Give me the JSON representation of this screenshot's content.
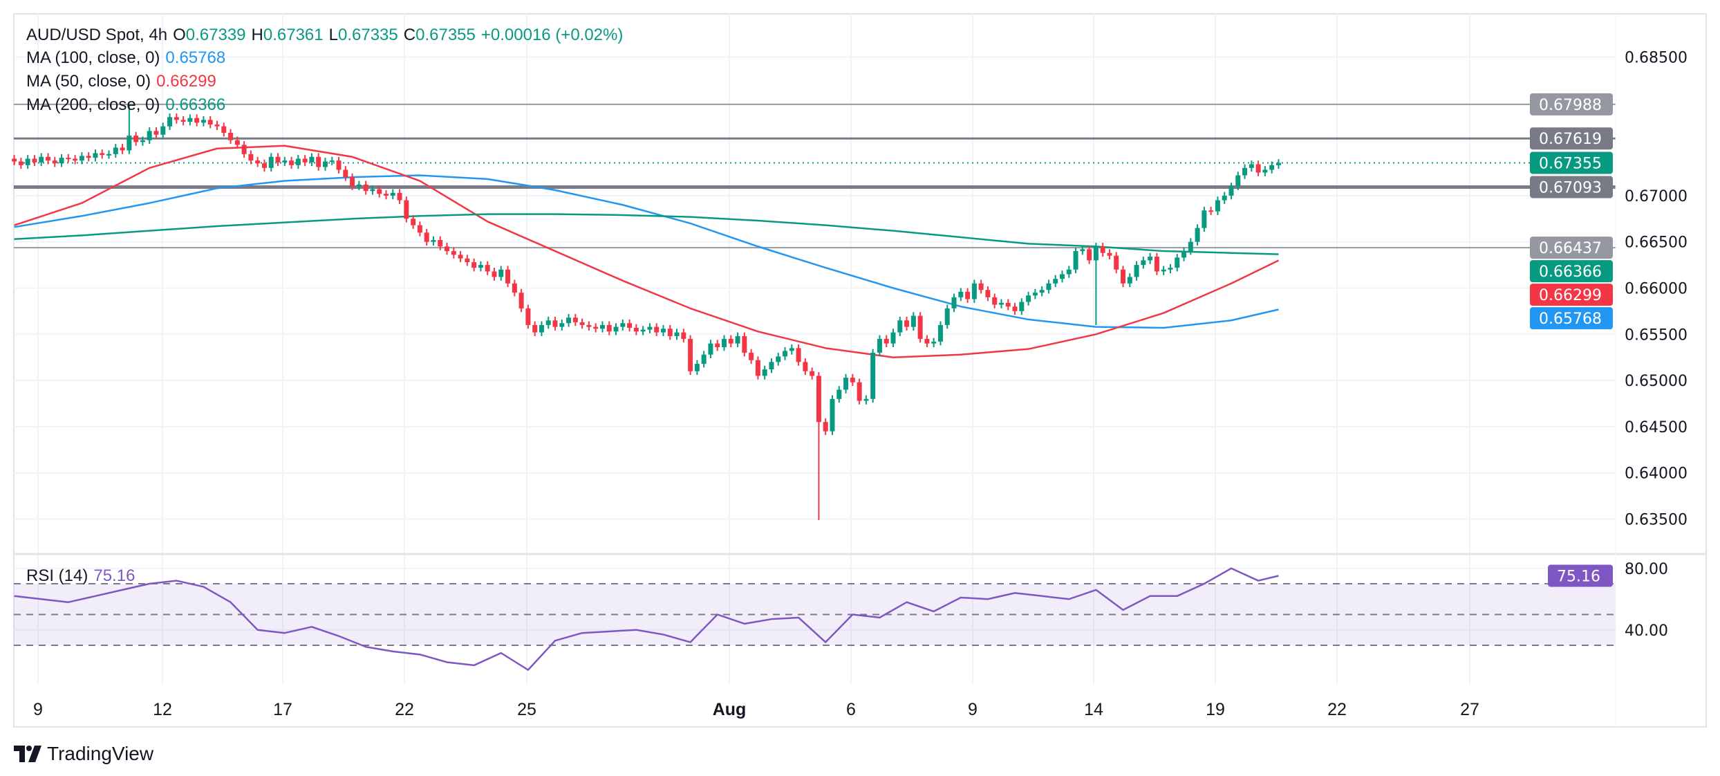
{
  "legend": {
    "symbol": "AUD/USD Spot, 4h",
    "o_label": "O",
    "o_value": "0.67339",
    "h_label": "H",
    "h_value": "0.67361",
    "l_label": "L",
    "l_value": "0.67335",
    "c_label": "C",
    "c_value": "0.67355",
    "change": "+0.00016 (+0.02%)",
    "ma100_label": "MA (100, close, 0)",
    "ma100_value": "0.65768",
    "ma50_label": "MA (50, close, 0)",
    "ma50_value": "0.66299",
    "ma200_label": "MA (200, close, 0)",
    "ma200_value": "0.66366"
  },
  "rsi_legend": {
    "label": "RSI (14)",
    "value": "75.16"
  },
  "price_axis": {
    "ticks": [
      "0.68500",
      "0.67000",
      "0.66500",
      "0.66000",
      "0.65500",
      "0.65000",
      "0.64500",
      "0.64000",
      "0.63500"
    ],
    "tags": [
      {
        "text": "0.67988",
        "value": 0.67988,
        "color": "#9598A1"
      },
      {
        "text": "0.67619",
        "value": 0.67619,
        "color": "#787B86"
      },
      {
        "text": "0.67355",
        "value": 0.67355,
        "color": "#089981"
      },
      {
        "text": "0.67093",
        "value": 0.67093,
        "color": "#787B86"
      },
      {
        "text": "0.66437",
        "value": 0.66437,
        "color": "#9598A1"
      },
      {
        "text": "0.66366",
        "value": 0.66366,
        "color": "#089981"
      },
      {
        "text": "0.66299",
        "value": 0.66299,
        "color": "#F23645"
      },
      {
        "text": "0.65768",
        "value": 0.65768,
        "color": "#2196F3"
      }
    ]
  },
  "rsi_axis": {
    "ticks": [
      "80.00",
      "40.00"
    ],
    "tag": "75.16",
    "tag_color": "#7E57C2"
  },
  "time_axis": {
    "labels": [
      "9",
      "12",
      "17",
      "22",
      "25",
      "Aug",
      "6",
      "9",
      "14",
      "19",
      "22",
      "27"
    ]
  },
  "branding": {
    "name": "TradingView"
  },
  "colors": {
    "up": "#089981",
    "down": "#F23645",
    "ma50": "#F23645",
    "ma100": "#2196F3",
    "ma200": "#089981",
    "rsi": "#7E57C2",
    "level_line": "#787B86"
  },
  "chart_data": {
    "type": "candlestick",
    "timeframe": "4h",
    "ylim": [
      0.632,
      0.687
    ],
    "horizontal_levels": [
      0.67988,
      0.67619,
      0.67093,
      0.66437
    ],
    "last_price": 0.67355,
    "first_open": 0.674,
    "close": [
      0.6737,
      0.6733,
      0.674,
      0.6736,
      0.6742,
      0.6738,
      0.6735,
      0.6741,
      0.674,
      0.6738,
      0.6743,
      0.6741,
      0.6746,
      0.6744,
      0.6745,
      0.6752,
      0.6749,
      0.6765,
      0.6758,
      0.676,
      0.677,
      0.6766,
      0.6775,
      0.6785,
      0.6782,
      0.678,
      0.6784,
      0.6779,
      0.6782,
      0.6777,
      0.6775,
      0.6768,
      0.676,
      0.6755,
      0.6745,
      0.6738,
      0.6735,
      0.673,
      0.6742,
      0.6736,
      0.6738,
      0.6733,
      0.674,
      0.6736,
      0.6742,
      0.6731,
      0.6737,
      0.6738,
      0.6728,
      0.672,
      0.671,
      0.6712,
      0.6705,
      0.6707,
      0.6702,
      0.67,
      0.6703,
      0.6695,
      0.6675,
      0.6668,
      0.666,
      0.665,
      0.6652,
      0.6645,
      0.664,
      0.6636,
      0.6632,
      0.6628,
      0.6622,
      0.6625,
      0.6618,
      0.6612,
      0.662,
      0.6605,
      0.6595,
      0.6578,
      0.656,
      0.6552,
      0.656,
      0.6565,
      0.6558,
      0.6562,
      0.6568,
      0.6563,
      0.656,
      0.6558,
      0.6556,
      0.656,
      0.6553,
      0.6558,
      0.6562,
      0.6557,
      0.6553,
      0.6555,
      0.6558,
      0.6552,
      0.6556,
      0.6548,
      0.6552,
      0.6545,
      0.651,
      0.6518,
      0.6528,
      0.654,
      0.6536,
      0.6545,
      0.654,
      0.6548,
      0.653,
      0.6522,
      0.6505,
      0.6512,
      0.652,
      0.6526,
      0.6532,
      0.6535,
      0.652,
      0.651,
      0.6505,
      0.6455,
      0.6445,
      0.648,
      0.649,
      0.6503,
      0.6498,
      0.6478,
      0.648,
      0.653,
      0.6545,
      0.654,
      0.6552,
      0.6565,
      0.6558,
      0.657,
      0.6545,
      0.654,
      0.6542,
      0.656,
      0.6578,
      0.659,
      0.6596,
      0.6588,
      0.6605,
      0.6598,
      0.659,
      0.6582,
      0.6584,
      0.658,
      0.6575,
      0.6585,
      0.6592,
      0.6595,
      0.6598,
      0.6605,
      0.661,
      0.6615,
      0.662,
      0.664,
      0.6642,
      0.663,
      0.6645,
      0.6638,
      0.6635,
      0.662,
      0.6605,
      0.6612,
      0.6625,
      0.663,
      0.6634,
      0.6618,
      0.662,
      0.6622,
      0.6633,
      0.664,
      0.665,
      0.6665,
      0.6684,
      0.6683,
      0.6695,
      0.67,
      0.671,
      0.6722,
      0.673,
      0.6734,
      0.6725,
      0.6728,
      0.6733,
      0.67355
    ],
    "wick_extremes": [
      {
        "bar": 17,
        "high": 0.6799
      },
      {
        "bar": 119,
        "low": 0.6349
      },
      {
        "bar": 160,
        "low": 0.656
      }
    ],
    "moving_averages": [
      {
        "name": "MA (100, close, 0)",
        "color": "#2196F3",
        "values": [
          0.6666,
          0.6678,
          0.6692,
          0.6708,
          0.6716,
          0.672,
          0.6722,
          0.6718,
          0.6706,
          0.669,
          0.667,
          0.6645,
          0.6622,
          0.66,
          0.658,
          0.6566,
          0.6558,
          0.6557,
          0.6565,
          0.65768
        ]
      },
      {
        "name": "MA (50, close, 0)",
        "color": "#F23645",
        "values": [
          0.6668,
          0.6692,
          0.673,
          0.6751,
          0.6754,
          0.6742,
          0.6716,
          0.6672,
          0.664,
          0.6608,
          0.6578,
          0.6553,
          0.6535,
          0.6525,
          0.6528,
          0.6534,
          0.655,
          0.6573,
          0.6605,
          0.66299
        ]
      },
      {
        "name": "MA (200, close, 0)",
        "color": "#089981",
        "values": [
          0.6653,
          0.6657,
          0.6662,
          0.6667,
          0.6671,
          0.6675,
          0.6678,
          0.668,
          0.668,
          0.6679,
          0.6677,
          0.6673,
          0.6668,
          0.6662,
          0.6655,
          0.6648,
          0.6645,
          0.664,
          0.6638,
          0.66366
        ]
      }
    ],
    "rsi": {
      "name": "RSI (14)",
      "bands": [
        70,
        50,
        30
      ],
      "ylim": [
        0,
        100
      ],
      "values": [
        62,
        60,
        58,
        62,
        66,
        70,
        72,
        68,
        58,
        40,
        38,
        42,
        36,
        29,
        26,
        24,
        19,
        17,
        25,
        14,
        33,
        38,
        39,
        40,
        37,
        32,
        50,
        44,
        47,
        48,
        32,
        50,
        48,
        58,
        52,
        61,
        60,
        64,
        62,
        60,
        66,
        53,
        62,
        62,
        70,
        80,
        72,
        75.16
      ]
    }
  }
}
